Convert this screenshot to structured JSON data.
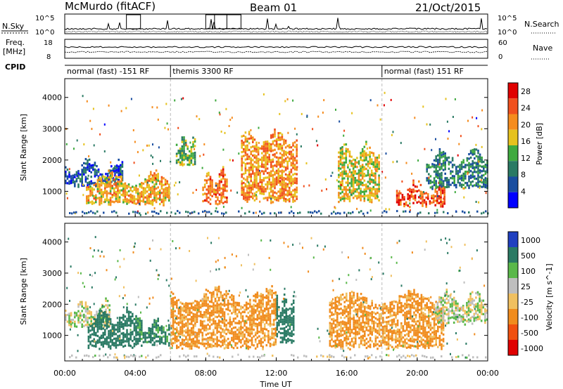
{
  "header": {
    "station": "McMurdo (fitACF)",
    "beam": "Beam 01",
    "date": "21/Oct/2015"
  },
  "noise_panel": {
    "left_label": "N.Sky",
    "right_label": "N.Search",
    "ticks_left": [
      "10^5",
      "10^0"
    ],
    "ticks_right": [
      "10^5",
      "10^0"
    ]
  },
  "freq_panel": {
    "left_label_line1": "Freq.",
    "left_label_line2": "[MHz]",
    "right_label": "Nave",
    "ticks_left": [
      "18",
      "8"
    ],
    "ticks_right": [
      "60",
      "0"
    ]
  },
  "cpid_panel": {
    "label": "CPID",
    "segments": [
      {
        "label": "normal (fast) -151 RF",
        "start_h": 0,
        "end_h": 6
      },
      {
        "label": "themis 3300 RF",
        "start_h": 6,
        "end_h": 18
      },
      {
        "label": "normal (fast) 151 RF",
        "start_h": 18,
        "end_h": 24
      }
    ]
  },
  "chart_data": [
    {
      "type": "heatmap",
      "title": "",
      "xlabel": "Time UT",
      "ylabel": "Slant Range [km]",
      "xlim": [
        0,
        24
      ],
      "ylim": [
        180,
        4600
      ],
      "x_ticks": [
        "00:00",
        "04:00",
        "08:00",
        "12:00",
        "16:00",
        "20:00",
        "00:00"
      ],
      "y_ticks": [
        1000,
        2000,
        3000,
        4000
      ],
      "colorbar": {
        "label": "Power [dB]",
        "ticks": [
          4,
          8,
          12,
          16,
          20,
          24,
          28
        ],
        "range": [
          0,
          30
        ],
        "colors": [
          "#0000ff",
          "#1a4ea0",
          "#2a7a64",
          "#3faa3f",
          "#e6c21e",
          "#f58c1e",
          "#f0501e",
          "#e00000"
        ]
      },
      "echo_regions": [
        {
          "t_start": 0.0,
          "t_end": 3.3,
          "range_low": 1300,
          "range_high": 1900,
          "level": 6
        },
        {
          "t_start": 1.2,
          "t_end": 5.9,
          "range_low": 700,
          "range_high": 1500,
          "level": 20
        },
        {
          "t_start": 6.3,
          "t_end": 7.4,
          "range_low": 1900,
          "range_high": 2700,
          "level": 14
        },
        {
          "t_start": 7.8,
          "t_end": 9.2,
          "range_low": 700,
          "range_high": 1600,
          "level": 24
        },
        {
          "t_start": 10.0,
          "t_end": 13.2,
          "range_low": 800,
          "range_high": 2800,
          "level": 22
        },
        {
          "t_start": 15.5,
          "t_end": 17.8,
          "range_low": 800,
          "range_high": 2400,
          "level": 18
        },
        {
          "t_start": 18.8,
          "t_end": 21.5,
          "range_low": 650,
          "range_high": 1200,
          "level": 26
        },
        {
          "t_start": 20.5,
          "t_end": 24.0,
          "range_low": 1200,
          "range_high": 2200,
          "level": 10
        }
      ]
    },
    {
      "type": "heatmap",
      "title": "",
      "xlabel": "Time UT",
      "ylabel": "Slant Range [km]",
      "xlim": [
        0,
        24
      ],
      "ylim": [
        180,
        4600
      ],
      "x_ticks": [
        "00:00",
        "04:00",
        "08:00",
        "12:00",
        "16:00",
        "20:00",
        "00:00"
      ],
      "y_ticks": [
        1000,
        2000,
        3000,
        4000
      ],
      "colorbar": {
        "label": "Velocity [m s^-1]",
        "ticks": [
          1000,
          500,
          100,
          25,
          -25,
          -100,
          -500,
          -1000
        ],
        "range": [
          -1200,
          1200
        ],
        "colors": [
          "#2040c0",
          "#2a7a64",
          "#5ab84a",
          "#bebebe",
          "#f0c060",
          "#f08c1e",
          "#f05010",
          "#e00000"
        ]
      },
      "echo_regions": [
        {
          "t_start": 0.0,
          "t_end": 2.5,
          "range_low": 1400,
          "range_high": 2000,
          "velocity": 0
        },
        {
          "t_start": 1.3,
          "t_end": 4.0,
          "range_low": 700,
          "range_high": 1700,
          "velocity": 300
        },
        {
          "t_start": 4.0,
          "t_end": 6.0,
          "range_low": 800,
          "range_high": 1500,
          "velocity": 150
        },
        {
          "t_start": 6.0,
          "t_end": 12.0,
          "range_low": 700,
          "range_high": 2400,
          "velocity": -150
        },
        {
          "t_start": 12.0,
          "t_end": 13.0,
          "range_low": 900,
          "range_high": 2200,
          "velocity": 400
        },
        {
          "t_start": 15.0,
          "t_end": 21.5,
          "range_low": 700,
          "range_high": 2300,
          "velocity": -150
        },
        {
          "t_start": 21.0,
          "t_end": 24.0,
          "range_low": 1500,
          "range_high": 2300,
          "velocity": 0
        }
      ]
    }
  ]
}
